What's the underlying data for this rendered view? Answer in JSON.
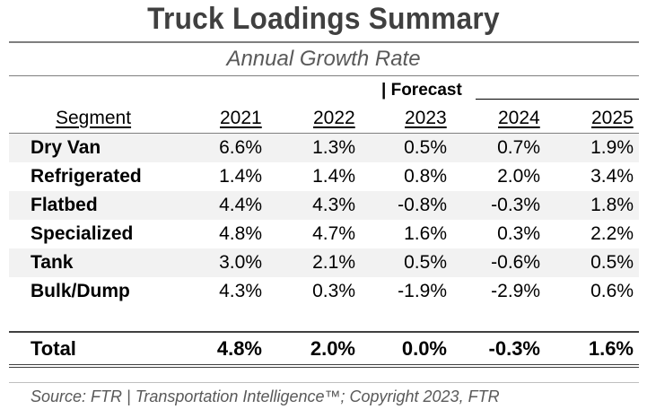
{
  "title": "Truck Loadings Summary",
  "subtitle": "Annual Growth Rate",
  "forecast_label": "| Forecast",
  "headers": {
    "segment": "Segment",
    "y1": "2021",
    "y2": "2022",
    "y3": "2023",
    "y4": "2024",
    "y5": "2025"
  },
  "rows": [
    {
      "segment": "Dry Van",
      "v": [
        "6.6%",
        "1.3%",
        "0.5%",
        "0.7%",
        "1.9%"
      ]
    },
    {
      "segment": "Refrigerated",
      "v": [
        "1.4%",
        "1.4%",
        "0.8%",
        "2.0%",
        "3.4%"
      ]
    },
    {
      "segment": "Flatbed",
      "v": [
        "4.4%",
        "4.3%",
        "-0.8%",
        "-0.3%",
        "1.8%"
      ]
    },
    {
      "segment": "Specialized",
      "v": [
        "4.8%",
        "4.7%",
        "1.6%",
        "0.3%",
        "2.2%"
      ]
    },
    {
      "segment": "Tank",
      "v": [
        "3.0%",
        "2.1%",
        "0.5%",
        "-0.6%",
        "0.5%"
      ]
    },
    {
      "segment": "Bulk/Dump",
      "v": [
        "4.3%",
        "0.3%",
        "-1.9%",
        "-2.9%",
        "0.6%"
      ]
    }
  ],
  "total": {
    "segment": "Total",
    "v": [
      "4.8%",
      "2.0%",
      "0.0%",
      "-0.3%",
      "1.6%"
    ]
  },
  "source": "Source: FTR | Transportation Intelligence™; Copyright 2023, FTR",
  "colors": {
    "title": "#404040",
    "subtitle": "#595959",
    "row_shade": "#f2f2f2",
    "rule": "#7f7f7f"
  }
}
